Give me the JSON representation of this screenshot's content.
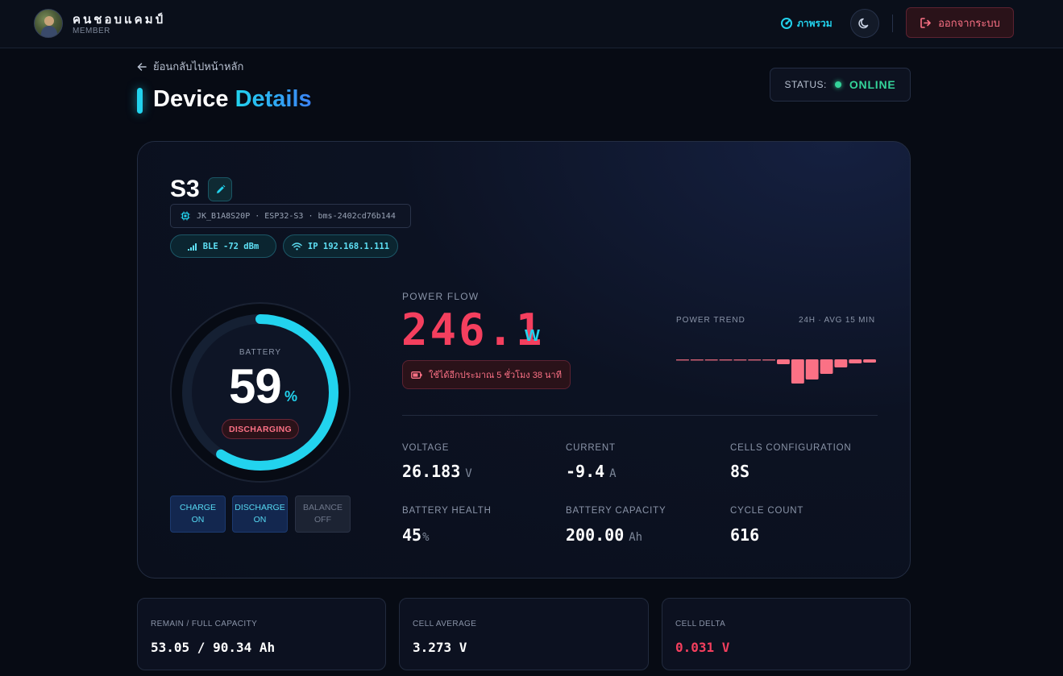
{
  "user": {
    "name": "คนชอบแคมป์",
    "role": "MEMBER"
  },
  "nav": {
    "overview_label": "ภาพรวม",
    "logout_label": "ออกจากระบบ"
  },
  "page": {
    "back_label": "ย้อนกลับไปหน้าหลัก",
    "title_main": "Device",
    "title_accent": "Details",
    "status_label": "STATUS:",
    "status_value": "ONLINE"
  },
  "device": {
    "name": "S3",
    "chip_info": "JK_B1A8S20P · ESP32-S3 · bms-2402cd76b144",
    "ble": "BLE -72 dBm",
    "ip": "IP 192.168.1.111"
  },
  "battery": {
    "label": "BATTERY",
    "percent": 59,
    "percent_text": "59",
    "unit": "%",
    "state": "DISCHARGING"
  },
  "toggles": [
    {
      "line1": "CHARGE",
      "line2": "ON",
      "on": true
    },
    {
      "line1": "DISCHARGE",
      "line2": "ON",
      "on": true
    },
    {
      "line1": "BALANCE",
      "line2": "OFF",
      "on": false
    }
  ],
  "power": {
    "label": "POWER FLOW",
    "value": "246.1",
    "unit": "W",
    "runtime": "ใช้ได้อีกประมาณ 5 ชั่วโมง 38 นาที",
    "trend_label": "POWER TREND",
    "trend_meta": "24H · AVG 15 MIN",
    "trend_values": [
      0,
      0,
      0,
      0,
      0,
      0,
      0,
      -6,
      -30,
      -25,
      -18,
      -10,
      -5,
      -4
    ]
  },
  "stats": [
    {
      "label": "VOLTAGE",
      "value": "26.183",
      "unit": "V"
    },
    {
      "label": "CURRENT",
      "value": "-9.4",
      "unit": "A"
    },
    {
      "label": "CELLS CONFIGURATION",
      "value": "8S",
      "unit": ""
    },
    {
      "label": "BATTERY HEALTH",
      "value": "45",
      "unit": "%"
    },
    {
      "label": "BATTERY CAPACITY",
      "value": "200.00",
      "unit": "Ah"
    },
    {
      "label": "CYCLE COUNT",
      "value": "616",
      "unit": ""
    }
  ],
  "cards": [
    {
      "label": "REMAIN / FULL CAPACITY",
      "value": "53.05 / 90.34 Ah"
    },
    {
      "label": "CELL AVERAGE",
      "value": "3.273 V"
    },
    {
      "label": "CELL DELTA",
      "value": "0.031 V"
    }
  ],
  "colors": {
    "accent": "#22d3ee",
    "danger": "#f43f5e",
    "success": "#34d399"
  }
}
